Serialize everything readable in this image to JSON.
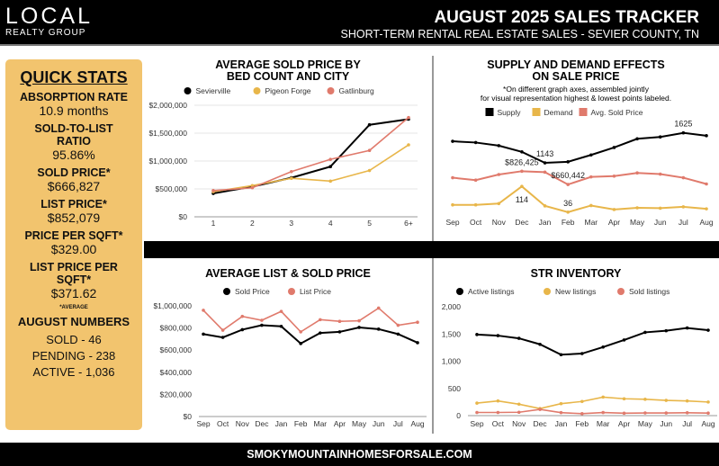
{
  "header": {
    "logo_top": "LOCAL",
    "logo_bottom": "REALTY GROUP",
    "title": "AUGUST 2025 SALES TRACKER",
    "subtitle": "SHORT-TERM RENTAL REAL ESTATE SALES - SEVIER COUNTY, TN"
  },
  "quick_stats": {
    "title": "QUICK STATS",
    "items": [
      {
        "label": "ABSORPTION RATE",
        "value": "10.9 months"
      },
      {
        "label": "SOLD-TO-LIST RATIO",
        "value": "95.86%"
      },
      {
        "label": "SOLD PRICE*",
        "value": "$666,827"
      },
      {
        "label": "LIST PRICE*",
        "value": "$852,079"
      },
      {
        "label": "PRICE PER SQFT*",
        "value": "$329.00"
      },
      {
        "label": "LIST PRICE PER SQFT*",
        "value": "$371.62"
      }
    ],
    "note": "*AVERAGE",
    "numbers_title": "AUGUST NUMBERS",
    "numbers": [
      "SOLD - 46",
      "PENDING - 238",
      "ACTIVE - 1,036"
    ]
  },
  "footer": {
    "url": "SMOKYMOUNTAINHOMESFORSALE.COM"
  },
  "colors": {
    "black": "#000000",
    "gold": "#e8b64a",
    "salmon": "#e07a6c",
    "panel": "#f2c46e"
  },
  "chart_data": [
    {
      "type": "line",
      "title": "AVERAGE SOLD PRICE BY BED COUNT AND CITY",
      "categories": [
        "1",
        "2",
        "3",
        "4",
        "5",
        "6+"
      ],
      "ylim": [
        0,
        2000000
      ],
      "yticks": [
        "$0",
        "$500,000",
        "$1,000,000",
        "$1,500,000",
        "$2,000,000"
      ],
      "grid": true,
      "legend": "top",
      "series": [
        {
          "name": "Sevierville",
          "color": "#000000",
          "values": [
            420000,
            540000,
            700000,
            900000,
            1650000,
            1750000
          ]
        },
        {
          "name": "Pigeon Forge",
          "color": "#e8b64a",
          "values": [
            450000,
            560000,
            690000,
            640000,
            830000,
            1290000
          ]
        },
        {
          "name": "Gatlinburg",
          "color": "#e07a6c",
          "values": [
            470000,
            520000,
            810000,
            1030000,
            1190000,
            1780000
          ]
        }
      ]
    },
    {
      "type": "line",
      "title": "SUPPLY AND DEMAND EFFECTS ON SALE PRICE",
      "subtitle": "*On different graph axes, assembled jointly for visual representation highest & lowest points labeled.",
      "categories": [
        "Sep",
        "Oct",
        "Nov",
        "Dec",
        "Jan",
        "Feb",
        "Mar",
        "Apr",
        "May",
        "Jun",
        "Jul",
        "Aug"
      ],
      "legend": "top",
      "series": [
        {
          "name": "Supply",
          "color": "#000000",
          "values": [
            1490,
            1470,
            1420,
            1320,
            1143,
            1160,
            1270,
            1390,
            1530,
            1560,
            1625,
            1580
          ],
          "labels": {
            "4": "1143",
            "10": "1625"
          }
        },
        {
          "name": "Demand",
          "color": "#e8b64a",
          "values": [
            58,
            58,
            62,
            114,
            55,
            36,
            56,
            44,
            49,
            48,
            52,
            46
          ],
          "labels": {
            "3": "114",
            "5": "36"
          }
        },
        {
          "name": "Avg. Sold Price",
          "color": "#e07a6c",
          "values": [
            745000,
            715000,
            785000,
            826425,
            815000,
            660442,
            755000,
            765000,
            805000,
            790000,
            745000,
            666827
          ],
          "labels": {
            "3": "$826,425",
            "5": "$660,442"
          }
        }
      ]
    },
    {
      "type": "line",
      "title": "AVERAGE LIST & SOLD PRICE",
      "categories": [
        "Sep",
        "Oct",
        "Nov",
        "Dec",
        "Jan",
        "Feb",
        "Mar",
        "Apr",
        "May",
        "Jun",
        "Jul",
        "Aug"
      ],
      "ylim": [
        0,
        1000000
      ],
      "yticks": [
        "$0",
        "$200,000",
        "$400,000",
        "$600,000",
        "$800,000",
        "$1,000,000"
      ],
      "legend": "top",
      "series": [
        {
          "name": "Sold Price",
          "color": "#000000",
          "values": [
            745000,
            715000,
            785000,
            825000,
            815000,
            660000,
            755000,
            765000,
            805000,
            790000,
            745000,
            667000
          ]
        },
        {
          "name": "List Price",
          "color": "#e07a6c",
          "values": [
            960000,
            780000,
            905000,
            870000,
            950000,
            765000,
            875000,
            860000,
            865000,
            980000,
            825000,
            852000
          ]
        }
      ]
    },
    {
      "type": "line",
      "title": "STR INVENTORY",
      "categories": [
        "Sep",
        "Oct",
        "Nov",
        "Dec",
        "Jan",
        "Feb",
        "Mar",
        "Apr",
        "May",
        "Jun",
        "Jul",
        "Aug"
      ],
      "ylim": [
        0,
        2000
      ],
      "yticks": [
        "0",
        "500",
        "1,000",
        "1,500",
        "2,000"
      ],
      "legend": "top",
      "series": [
        {
          "name": "Active listings",
          "color": "#000000",
          "values": [
            1490,
            1470,
            1420,
            1310,
            1120,
            1140,
            1260,
            1390,
            1530,
            1560,
            1610,
            1570
          ]
        },
        {
          "name": "New listings",
          "color": "#e8b64a",
          "values": [
            230,
            270,
            210,
            130,
            220,
            260,
            340,
            310,
            300,
            280,
            270,
            250
          ]
        },
        {
          "name": "Sold listings",
          "color": "#e07a6c",
          "values": [
            58,
            58,
            62,
            114,
            55,
            36,
            56,
            44,
            49,
            48,
            52,
            46
          ]
        }
      ]
    }
  ]
}
